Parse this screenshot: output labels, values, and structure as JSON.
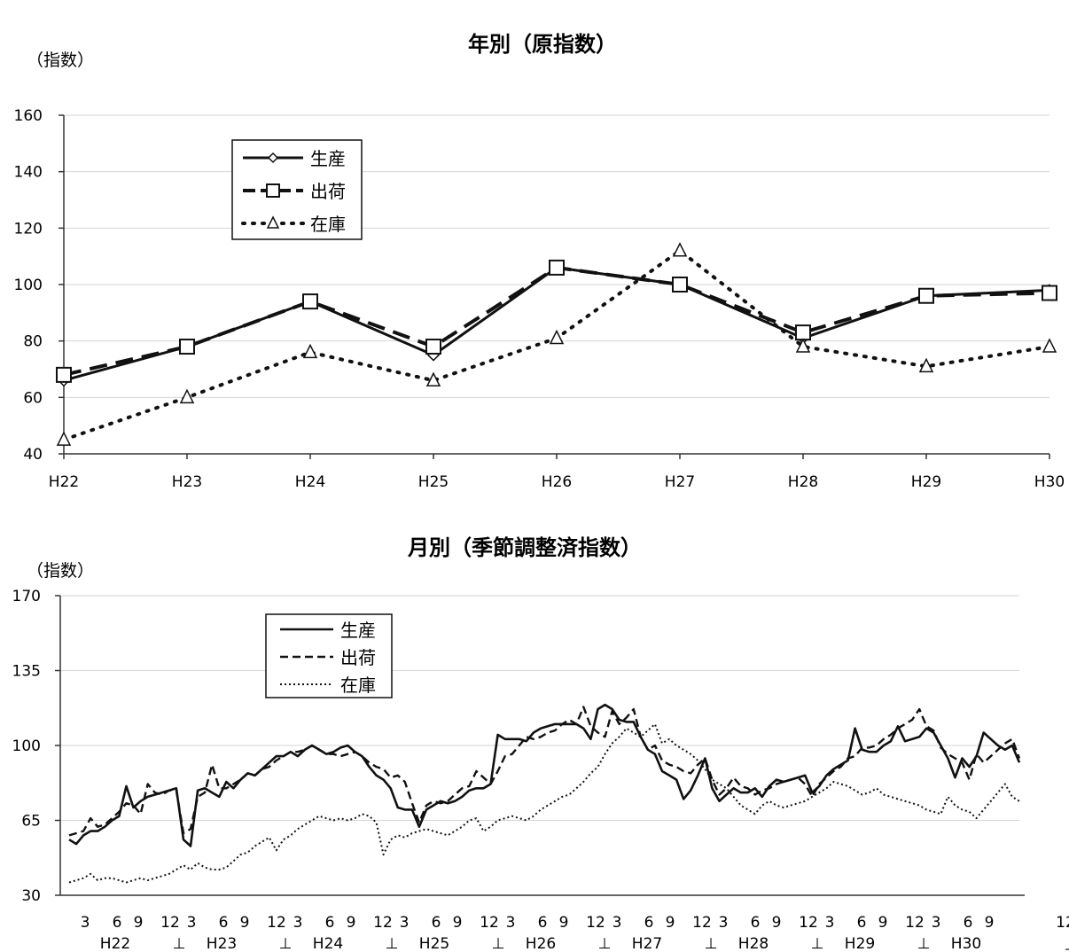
{
  "chart_data": [
    {
      "type": "line",
      "title": "年別（原指数）",
      "ylabel": "（指数）",
      "ylim": [
        40,
        160
      ],
      "yticks": [
        "40",
        "60",
        "80",
        "100",
        "120",
        "140",
        "160"
      ],
      "categories": [
        "H22",
        "H23",
        "H24",
        "H25",
        "H26",
        "H27",
        "H28",
        "H29",
        "H30"
      ],
      "grid": true,
      "legend": "top-left",
      "series": [
        {
          "name": "生産",
          "values": [
            66,
            78,
            94,
            75,
            106,
            100,
            81,
            96,
            98
          ],
          "color": "#111111",
          "marker": "diamond"
        },
        {
          "name": "出荷",
          "values": [
            68,
            78,
            94,
            78,
            106,
            100,
            83,
            96,
            97
          ],
          "color": "#111111",
          "marker": "square"
        },
        {
          "name": "在庫",
          "values": [
            45,
            60,
            76,
            66,
            81,
            112,
            78,
            71,
            78
          ],
          "color": "#111111",
          "marker": "triangle"
        }
      ]
    },
    {
      "type": "line",
      "title": "月別（季節調整済指数）",
      "ylabel": "（指数）",
      "ylim": [
        30,
        170
      ],
      "yticks": [
        "30",
        "65",
        "100",
        "135",
        "170"
      ],
      "month_ticks": [
        "3",
        "6",
        "9",
        "12"
      ],
      "year_labels": [
        "H22",
        "H23",
        "H24",
        "H25",
        "H26",
        "H27",
        "H28",
        "H29",
        "H30"
      ],
      "year_separator": "⊥",
      "end_mark": "」",
      "grid": true,
      "legend": "top-left",
      "series": [
        {
          "name": "生産",
          "style": "solid",
          "values": [
            56,
            54,
            58,
            60,
            60,
            62,
            65,
            67,
            81,
            71,
            74,
            76,
            77,
            78,
            79,
            80,
            56,
            53,
            79,
            80,
            78,
            76,
            83,
            80,
            84,
            87,
            86,
            89,
            92,
            95,
            95,
            97,
            95,
            98,
            100,
            98,
            96,
            97,
            99,
            100,
            97,
            95,
            90,
            86,
            84,
            80,
            71,
            70,
            70,
            62,
            70,
            72,
            74,
            73,
            74,
            76,
            79,
            80,
            80,
            82,
            105,
            103,
            103,
            103,
            102,
            106,
            108,
            109,
            110,
            110,
            110,
            110,
            108,
            103,
            117,
            119,
            117,
            112,
            111,
            111,
            104,
            98,
            96,
            88,
            86,
            84,
            75,
            79,
            86,
            94,
            80,
            74,
            77,
            80,
            78,
            78,
            80,
            76,
            81,
            84,
            83,
            84,
            85,
            86,
            78,
            81,
            86,
            89,
            91,
            93,
            108,
            98,
            97,
            97,
            100,
            102,
            109,
            102,
            103,
            104,
            108,
            106,
            100,
            94,
            85,
            94,
            90,
            95,
            106,
            103,
            100,
            98,
            100,
            92
          ]
        },
        {
          "name": "出荷",
          "style": "dashed",
          "values": [
            58,
            59,
            60,
            66,
            62,
            63,
            66,
            69,
            73,
            72,
            68,
            82,
            78,
            77,
            79,
            79,
            59,
            61,
            76,
            78,
            91,
            80,
            80,
            82,
            84,
            87,
            86,
            89,
            90,
            93,
            95,
            97,
            97,
            98,
            100,
            98,
            96,
            96,
            95,
            96,
            97,
            95,
            92,
            90,
            89,
            85,
            86,
            83,
            73,
            64,
            72,
            74,
            73,
            74,
            77,
            80,
            81,
            88,
            85,
            82,
            88,
            95,
            96,
            100,
            104,
            103,
            104,
            106,
            107,
            110,
            112,
            110,
            118,
            109,
            106,
            104,
            116,
            110,
            113,
            117,
            104,
            98,
            100,
            93,
            91,
            90,
            88,
            87,
            91,
            94,
            84,
            77,
            80,
            85,
            81,
            80,
            77,
            79,
            80,
            82,
            83,
            84,
            85,
            82,
            76,
            82,
            85,
            88,
            90,
            94,
            95,
            99,
            99,
            100,
            103,
            105,
            108,
            110,
            112,
            117,
            109,
            107,
            99,
            96,
            94,
            92,
            84,
            96,
            92,
            95,
            98,
            101,
            103,
            94
          ]
        },
        {
          "name": "在庫",
          "style": "dotted",
          "values": [
            36,
            37,
            38,
            40,
            37,
            38,
            38,
            37,
            36,
            37,
            38,
            37,
            38,
            39,
            40,
            42,
            44,
            42,
            45,
            43,
            42,
            42,
            43,
            46,
            49,
            50,
            53,
            55,
            57,
            51,
            56,
            58,
            61,
            63,
            65,
            67,
            66,
            65,
            66,
            65,
            66,
            68,
            67,
            64,
            49,
            56,
            58,
            57,
            59,
            60,
            61,
            60,
            59,
            58,
            60,
            62,
            65,
            66,
            60,
            62,
            65,
            66,
            67,
            66,
            65,
            67,
            70,
            72,
            74,
            76,
            77,
            80,
            83,
            87,
            90,
            96,
            101,
            104,
            108,
            106,
            104,
            107,
            110,
            101,
            103,
            100,
            98,
            96,
            93,
            89,
            84,
            82,
            80,
            76,
            72,
            70,
            68,
            72,
            74,
            72,
            71,
            72,
            73,
            74,
            76,
            78,
            80,
            83,
            82,
            81,
            79,
            77,
            78,
            80,
            77,
            76,
            75,
            74,
            73,
            72,
            70,
            69,
            68,
            76,
            72,
            70,
            69,
            66,
            70,
            74,
            78,
            82,
            76,
            74
          ]
        }
      ]
    }
  ]
}
